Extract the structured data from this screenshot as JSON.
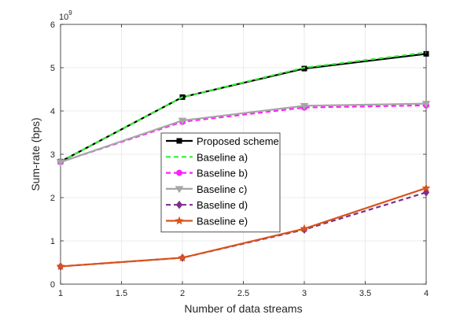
{
  "chart_data": {
    "type": "line",
    "xlabel": "Number of data streams",
    "ylabel": "Sum-rate (bps)",
    "y_exponent": {
      "base": "10",
      "power": "9"
    },
    "xlim": [
      1,
      4
    ],
    "ylim": [
      0,
      6
    ],
    "x_ticks": [
      "1",
      "1.5",
      "2",
      "2.5",
      "3",
      "3.5",
      "4"
    ],
    "y_ticks": [
      "0",
      "1",
      "2",
      "3",
      "4",
      "5",
      "6"
    ],
    "grid": true,
    "legend_position": "center-left",
    "x": [
      1,
      2,
      3,
      4
    ],
    "series": [
      {
        "name": "Proposed scheme",
        "values": [
          2.83,
          4.32,
          4.98,
          5.32
        ],
        "color": "#000000",
        "dash": "solid",
        "marker": "square"
      },
      {
        "name": "Baseline a)",
        "values": [
          2.83,
          4.32,
          5.0,
          5.35
        ],
        "color": "#33ee33",
        "dash": "dashed",
        "marker": "none"
      },
      {
        "name": "Baseline b)",
        "values": [
          2.82,
          3.75,
          4.08,
          4.13
        ],
        "color": "#ff22ff",
        "dash": "dashed",
        "marker": "circle"
      },
      {
        "name": "Baseline c)",
        "values": [
          2.82,
          3.78,
          4.12,
          4.17
        ],
        "color": "#a6a6a6",
        "dash": "solid",
        "marker": "triangle-down"
      },
      {
        "name": "Baseline d)",
        "values": [
          0.41,
          0.61,
          1.26,
          2.12
        ],
        "color": "#7e2f8e",
        "dash": "dashed",
        "marker": "diamond"
      },
      {
        "name": "Baseline e)",
        "values": [
          0.41,
          0.61,
          1.28,
          2.22
        ],
        "color": "#d95319",
        "dash": "solid",
        "marker": "star"
      }
    ]
  }
}
